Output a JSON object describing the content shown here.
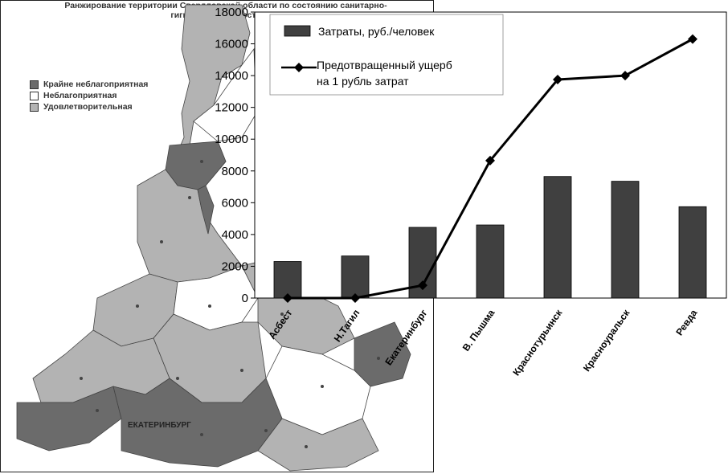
{
  "map": {
    "title_line1": "Ранжирование территории Свердловской области по состоянию санитарно-",
    "title_line2": "гигиенического состояния",
    "legend": [
      {
        "label": "Крайне неблагоприятная",
        "color": "#6b6b6b"
      },
      {
        "label": "Неблагоприятная",
        "color": "#ffffff"
      },
      {
        "label": "Удовлетворительная",
        "color": "#b3b3b3"
      }
    ],
    "city_label": "ЕКАТЕРИНБУРГ"
  },
  "chart_data": {
    "type": "bar",
    "categories": [
      "Асбест",
      "Н.Тагил",
      "Екатеринбург",
      "В. Пышма",
      "Краснотурьинск",
      "Красноуральск",
      "Ревда"
    ],
    "series": [
      {
        "name": "Затраты, руб./человек",
        "kind": "bar",
        "color": "#404040",
        "values": [
          2300,
          2650,
          4450,
          4600,
          7650,
          7350,
          5750
        ]
      },
      {
        "name": "Предотвращенный ущерб на 1 рубль затрат",
        "kind": "line",
        "color": "#000000",
        "values": [
          0,
          0,
          800,
          8650,
          13750,
          14000,
          16300
        ]
      }
    ],
    "ylim": [
      0,
      18000
    ],
    "yticks": [
      "0",
      "2000",
      "4000",
      "6000",
      "8000",
      "10000",
      "12000",
      "14000",
      "16000",
      "18000"
    ],
    "legend_line1": "Затраты, руб./человек",
    "legend_line2a": "Предотвращенный ущерб",
    "legend_line2b": "на 1 рубль затрат",
    "legend_position": "top-left"
  }
}
